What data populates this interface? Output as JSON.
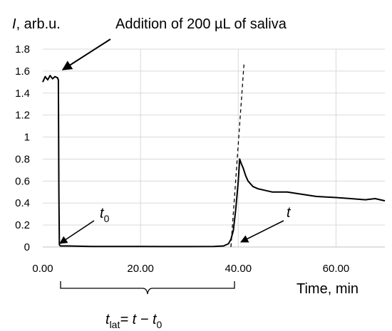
{
  "chart_data": {
    "type": "line",
    "ylabel_italic": "I",
    "ylabel_rest": ", arb.u.",
    "xlabel": "Time, min",
    "annotation_addition": "Addition of 200 µL of saliva",
    "annotation_t0": {
      "main": "t",
      "sub": "0"
    },
    "annotation_t": "t",
    "formula": {
      "main": "t",
      "sub": "lat",
      "rest": "= t − t",
      "sub2": "0"
    },
    "xlim": [
      0,
      70
    ],
    "ylim": [
      0,
      1.8
    ],
    "x_ticks": [
      0,
      20,
      40,
      60
    ],
    "x_tick_labels": [
      "0.00",
      "20.00",
      "40.00",
      "60.00"
    ],
    "y_ticks": [
      0,
      0.2,
      0.4,
      0.6,
      0.8,
      1.0,
      1.2,
      1.4,
      1.6,
      1.8
    ],
    "y_tick_labels": [
      "0",
      "0.2",
      "0.4",
      "0.6",
      "0.8",
      "1",
      "1.2",
      "1.4",
      "1.6",
      "1.8"
    ],
    "grid": true,
    "line_color": "#000000",
    "grid_color": "#d9d9d9",
    "series": [
      {
        "style": "solid",
        "x": [
          0,
          0.5,
          1,
          1.5,
          2,
          2.5,
          3,
          3.2,
          3.3,
          3.4,
          3.6,
          5,
          10,
          15,
          20,
          25,
          30,
          35,
          37,
          38,
          38.5,
          39,
          39.5,
          40,
          40.3,
          40.6,
          41,
          41.5,
          42,
          43,
          44,
          45,
          47,
          50,
          53,
          56,
          60,
          63,
          66,
          68,
          70
        ],
        "y": [
          1.5,
          1.55,
          1.52,
          1.56,
          1.53,
          1.55,
          1.54,
          1.52,
          0.5,
          0.02,
          0.01,
          0.01,
          0.005,
          0.005,
          0.005,
          0.004,
          0.004,
          0.005,
          0.01,
          0.03,
          0.07,
          0.15,
          0.35,
          0.6,
          0.8,
          0.76,
          0.72,
          0.65,
          0.6,
          0.55,
          0.53,
          0.52,
          0.5,
          0.5,
          0.48,
          0.46,
          0.45,
          0.44,
          0.43,
          0.44,
          0.42
        ]
      },
      {
        "style": "dashed",
        "x": [
          38.5,
          41.2
        ],
        "y": [
          0.0,
          1.68
        ]
      }
    ]
  }
}
